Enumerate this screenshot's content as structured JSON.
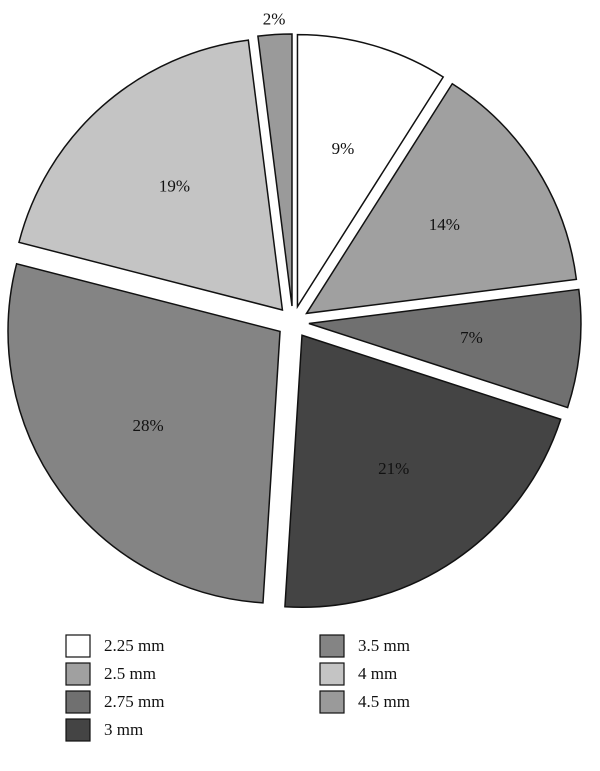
{
  "chart_data": {
    "type": "pie",
    "categories": [
      "2.25 mm",
      "2.5 mm",
      "2.75 mm",
      "3 mm",
      "3.5 mm",
      "4 mm",
      "4.5 mm"
    ],
    "values": [
      9,
      14,
      7,
      21,
      28,
      19,
      2
    ],
    "value_labels": [
      "9%",
      "14%",
      "7%",
      "21%",
      "28%",
      "19%",
      "2%"
    ],
    "colors": [
      "#ffffff",
      "#a0a0a0",
      "#707070",
      "#444444",
      "#848484",
      "#c4c4c4",
      "#9a9a9a"
    ]
  }
}
